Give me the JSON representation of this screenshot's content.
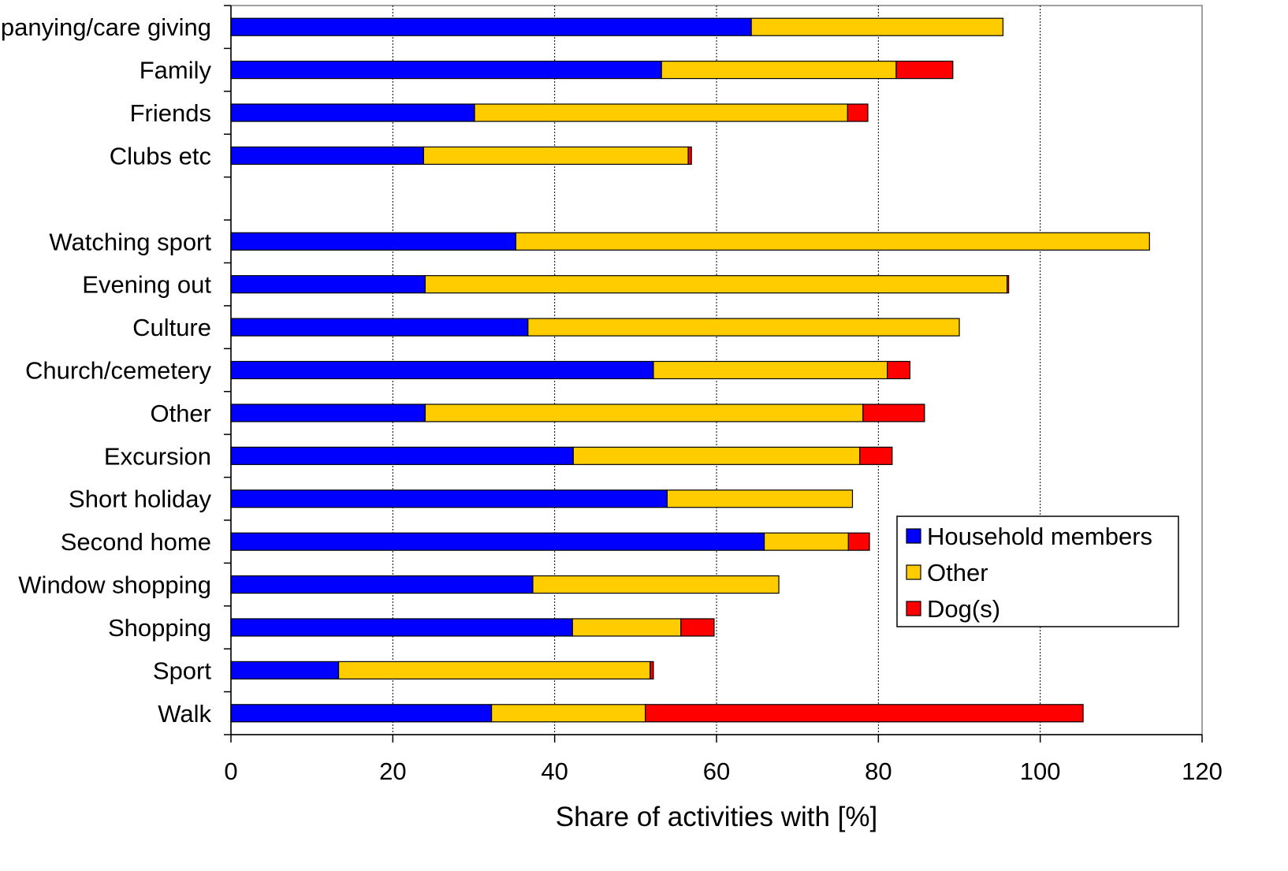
{
  "chart_data": {
    "type": "bar",
    "orientation": "horizontal",
    "stacked": true,
    "title": "",
    "xlabel": "Share of activities with [%]",
    "ylabel": "",
    "xlim": [
      0,
      120
    ],
    "xticks": [
      "0",
      "20",
      "40",
      "60",
      "80",
      "100",
      "120"
    ],
    "grid": "vertical dotted",
    "legend_position": "right",
    "categories": [
      "Accompanying/care giving",
      "Family",
      "Friends",
      "Clubs etc",
      "",
      "Watching sport",
      "Evening out",
      "Culture",
      "Church/cemetery",
      "Other",
      "Excursion",
      "Short holiday",
      "Second home",
      "Window shopping",
      "Shopping",
      "Sport",
      "Walk"
    ],
    "series": [
      {
        "name": "Household members",
        "color": "#0000ff",
        "values": [
          64.3,
          53.2,
          30.1,
          23.8,
          null,
          35.2,
          24.0,
          36.7,
          52.2,
          24.0,
          42.3,
          53.9,
          65.9,
          37.3,
          42.2,
          13.3,
          32.2
        ]
      },
      {
        "name": "Other",
        "color": "#ffcc00",
        "values": [
          31.1,
          29.0,
          46.1,
          32.7,
          null,
          78.3,
          71.9,
          53.3,
          28.9,
          54.1,
          35.4,
          22.9,
          10.4,
          30.4,
          13.4,
          38.5,
          19.0
        ]
      },
      {
        "name": "Dog(s)",
        "color": "#ff0000",
        "values": [
          0.0,
          7.0,
          2.5,
          0.4,
          null,
          0.0,
          0.2,
          0.0,
          2.8,
          7.6,
          4.0,
          0.0,
          2.6,
          0.0,
          4.1,
          0.4,
          54.1
        ]
      }
    ]
  }
}
